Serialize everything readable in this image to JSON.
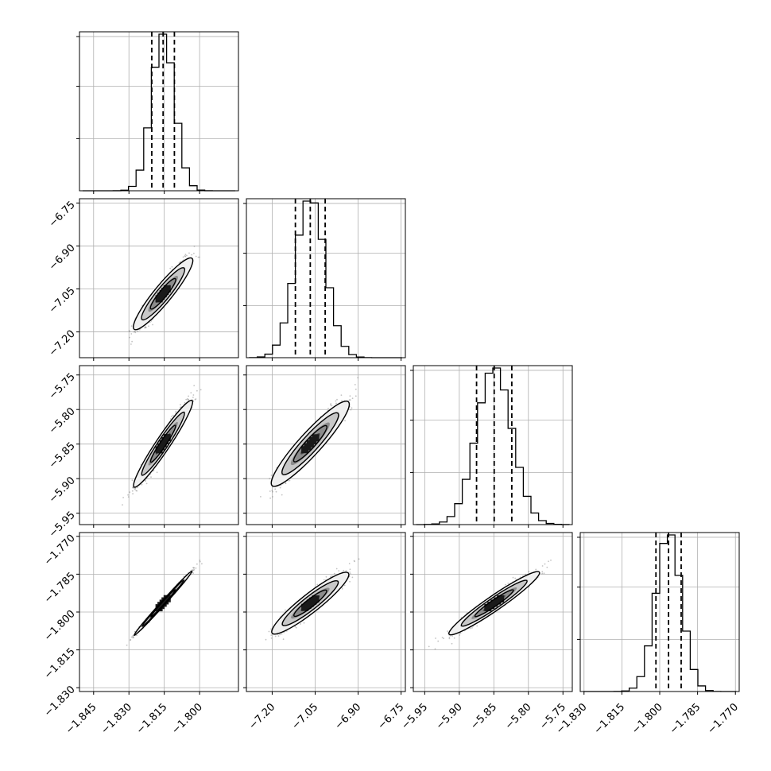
{
  "colors": {
    "line": "#000000",
    "grid": "#b0b0b0",
    "scatter": "#7a7a7a",
    "density_levels": [
      "#f0f0f0",
      "#c8c8c8",
      "#8c8c8c",
      "#4e4e4e",
      "#1a1a1a"
    ]
  },
  "chart_data": {
    "type": "corner",
    "grid": true,
    "parameters": [
      {
        "median": -1.8155,
        "sigma": 0.0048,
        "quantiles": [
          -1.8203,
          -1.8155,
          -1.8107
        ],
        "range": [
          -1.851,
          -1.7835
        ],
        "ticks": [
          -1.845,
          -1.83,
          -1.815,
          -1.8
        ],
        "tick_labels": [
          "−1.845",
          "−1.830",
          "−1.815",
          "−1.800"
        ]
      },
      {
        "median": -7.067,
        "sigma": 0.052,
        "quantiles": [
          -7.119,
          -7.067,
          -7.015
        ],
        "range": [
          -7.29,
          -6.735
        ],
        "ticks": [
          -7.2,
          -7.05,
          -6.9,
          -6.75
        ],
        "tick_labels": [
          "−7.20",
          "−7.05",
          "−6.90",
          "−6.75"
        ]
      },
      {
        "median": -5.8495,
        "sigma": 0.0255,
        "quantiles": [
          -5.875,
          -5.8495,
          -5.824
        ],
        "range": [
          -5.9665,
          -5.7365
        ],
        "ticks": [
          -5.95,
          -5.9,
          -5.85,
          -5.8,
          -5.75
        ],
        "tick_labels": [
          "−5.95",
          "−5.90",
          "−5.85",
          "−5.80",
          "−5.75"
        ]
      },
      {
        "median": -1.7965,
        "sigma": 0.005,
        "quantiles": [
          -1.8015,
          -1.7965,
          -1.7915
        ],
        "range": [
          -1.8315,
          -1.7685
        ],
        "ticks": [
          -1.83,
          -1.815,
          -1.8,
          -1.785,
          -1.77
        ],
        "tick_labels": [
          "−1.830",
          "−1.815",
          "−1.800",
          "−1.785",
          "−1.770"
        ]
      }
    ],
    "correlations": [
      [
        1.0,
        0.93,
        0.96,
        0.995
      ],
      [
        0.93,
        1.0,
        0.93,
        0.93
      ],
      [
        0.96,
        0.93,
        1.0,
        0.96
      ],
      [
        0.995,
        0.93,
        0.96,
        1.0
      ]
    ],
    "histogram_bins": 20,
    "sigma_contours": [
      0.5,
      1.0,
      1.5,
      2.0
    ]
  }
}
